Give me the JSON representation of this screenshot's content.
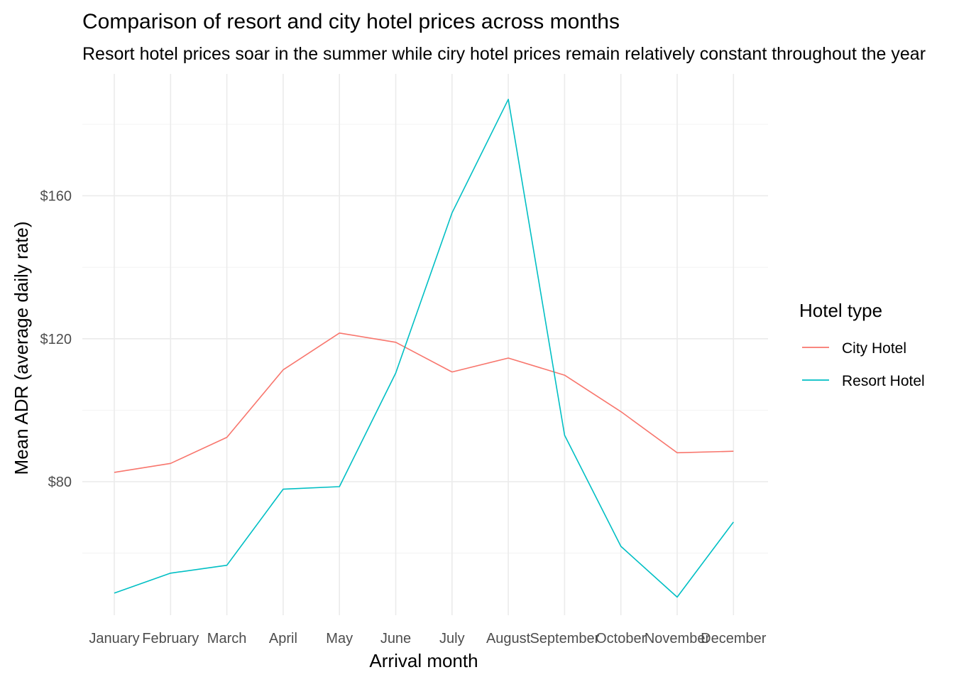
{
  "chart_data": {
    "type": "line",
    "title": "Comparison of resort and city hotel prices across months",
    "subtitle": "Resort hotel prices soar in the summer while ciry hotel prices remain relatively constant throughout the year",
    "xlabel": "Arrival month",
    "ylabel": "Mean ADR (average daily rate)",
    "categories": [
      "January",
      "February",
      "March",
      "April",
      "May",
      "June",
      "July",
      "August",
      "September",
      "October",
      "November",
      "December"
    ],
    "y_ticks": [
      {
        "value": 80,
        "label": "$80"
      },
      {
        "value": 120,
        "label": "$120"
      },
      {
        "value": 160,
        "label": "$160"
      }
    ],
    "ylim": [
      39.5,
      186.5
    ],
    "grid": true,
    "legend": {
      "title": "Hotel type",
      "position": "right"
    },
    "series": [
      {
        "name": "City Hotel",
        "color": "#F8766D",
        "values": [
          82.6,
          85.1,
          92.4,
          111.3,
          121.6,
          119.0,
          110.7,
          114.6,
          109.8,
          99.6,
          88.1,
          88.5
        ]
      },
      {
        "name": "Resort Hotel",
        "color": "#00BFC4",
        "values": [
          48.8,
          54.4,
          56.6,
          77.9,
          78.6,
          110.4,
          155.2,
          187.0,
          93.0,
          61.9,
          47.7,
          68.7
        ]
      }
    ]
  }
}
